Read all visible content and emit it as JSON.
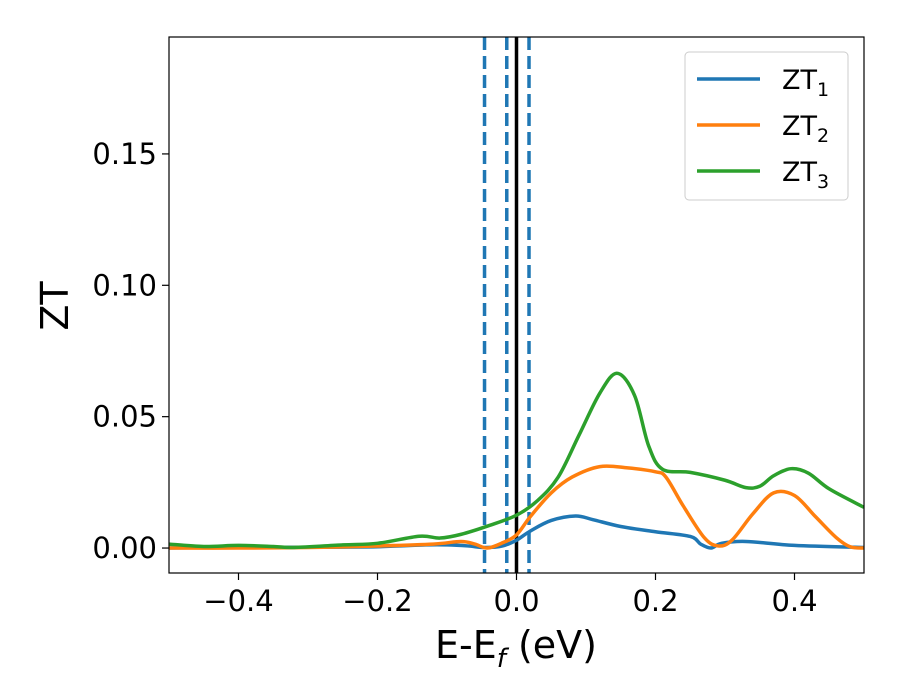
{
  "chart_data": {
    "type": "line",
    "xlabel": {
      "main": "E-E",
      "sub": "f",
      "tail": " (eV)"
    },
    "ylabel": "ZT",
    "xlim": [
      -0.5,
      0.5
    ],
    "ylim": [
      -0.0095,
      0.1945
    ],
    "xticks": [
      {
        "value": -0.4,
        "label": "−0.4"
      },
      {
        "value": -0.2,
        "label": "−0.2"
      },
      {
        "value": 0.0,
        "label": "0.0"
      },
      {
        "value": 0.2,
        "label": "0.2"
      },
      {
        "value": 0.4,
        "label": "0.4"
      }
    ],
    "yticks": [
      {
        "value": 0.0,
        "label": "0.00"
      },
      {
        "value": 0.05,
        "label": "0.05"
      },
      {
        "value": 0.1,
        "label": "0.10"
      },
      {
        "value": 0.15,
        "label": "0.15"
      }
    ],
    "legend_position": "top-right",
    "vlines": [
      {
        "x": -0.046,
        "style": "dashed",
        "color": "#1f77b4"
      },
      {
        "x": -0.014,
        "style": "dashed",
        "color": "#1f77b4"
      },
      {
        "x": 0.018,
        "style": "dashed",
        "color": "#1f77b4"
      },
      {
        "x": 0.0,
        "style": "solid",
        "color": "#000000"
      }
    ],
    "series": [
      {
        "name": "ZT",
        "sub": "1",
        "color": "#1f77b4",
        "points": [
          [
            -0.5,
            0.0
          ],
          [
            -0.4,
            0.0003
          ],
          [
            -0.3,
            0.0003
          ],
          [
            -0.2,
            0.0005
          ],
          [
            -0.13,
            0.0012
          ],
          [
            -0.1,
            0.0012
          ],
          [
            -0.07,
            0.0008
          ],
          [
            -0.045,
            0.0002
          ],
          [
            -0.02,
            0.0008
          ],
          [
            0.0,
            0.003
          ],
          [
            0.02,
            0.0065
          ],
          [
            0.05,
            0.0105
          ],
          [
            0.085,
            0.0122
          ],
          [
            0.11,
            0.0108
          ],
          [
            0.15,
            0.0082
          ],
          [
            0.2,
            0.0062
          ],
          [
            0.25,
            0.0044
          ],
          [
            0.265,
            0.0015
          ],
          [
            0.28,
            0.0
          ],
          [
            0.295,
            0.0018
          ],
          [
            0.33,
            0.0025
          ],
          [
            0.4,
            0.001
          ],
          [
            0.5,
            0.0002
          ]
        ]
      },
      {
        "name": "ZT",
        "sub": "2",
        "color": "#ff7f0e",
        "points": [
          [
            -0.5,
            0.0
          ],
          [
            -0.4,
            0.0
          ],
          [
            -0.3,
            0.0002
          ],
          [
            -0.2,
            0.0008
          ],
          [
            -0.12,
            0.0015
          ],
          [
            -0.08,
            0.0025
          ],
          [
            -0.06,
            0.0015
          ],
          [
            -0.042,
            0.0
          ],
          [
            -0.02,
            0.002
          ],
          [
            0.0,
            0.005
          ],
          [
            0.02,
            0.012
          ],
          [
            0.05,
            0.021
          ],
          [
            0.08,
            0.027
          ],
          [
            0.12,
            0.031
          ],
          [
            0.16,
            0.0305
          ],
          [
            0.2,
            0.029
          ],
          [
            0.215,
            0.027
          ],
          [
            0.24,
            0.016
          ],
          [
            0.27,
            0.004
          ],
          [
            0.29,
            0.0008
          ],
          [
            0.31,
            0.003
          ],
          [
            0.34,
            0.013
          ],
          [
            0.37,
            0.021
          ],
          [
            0.4,
            0.02
          ],
          [
            0.43,
            0.012
          ],
          [
            0.46,
            0.004
          ],
          [
            0.48,
            0.0005
          ],
          [
            0.5,
            0.0
          ]
        ]
      },
      {
        "name": "ZT",
        "sub": "3",
        "color": "#2ca02c",
        "points": [
          [
            -0.5,
            0.0015
          ],
          [
            -0.45,
            0.0006
          ],
          [
            -0.4,
            0.001
          ],
          [
            -0.35,
            0.0006
          ],
          [
            -0.32,
            0.0002
          ],
          [
            -0.25,
            0.0012
          ],
          [
            -0.2,
            0.0018
          ],
          [
            -0.14,
            0.0045
          ],
          [
            -0.11,
            0.0038
          ],
          [
            -0.08,
            0.0052
          ],
          [
            -0.04,
            0.0085
          ],
          [
            0.0,
            0.0125
          ],
          [
            0.03,
            0.018
          ],
          [
            0.06,
            0.027
          ],
          [
            0.09,
            0.043
          ],
          [
            0.12,
            0.059
          ],
          [
            0.145,
            0.0665
          ],
          [
            0.17,
            0.058
          ],
          [
            0.19,
            0.039
          ],
          [
            0.21,
            0.03
          ],
          [
            0.25,
            0.0288
          ],
          [
            0.3,
            0.0258
          ],
          [
            0.33,
            0.023
          ],
          [
            0.35,
            0.0235
          ],
          [
            0.37,
            0.0275
          ],
          [
            0.395,
            0.0302
          ],
          [
            0.42,
            0.0285
          ],
          [
            0.45,
            0.0225
          ],
          [
            0.5,
            0.0155
          ]
        ]
      }
    ]
  }
}
